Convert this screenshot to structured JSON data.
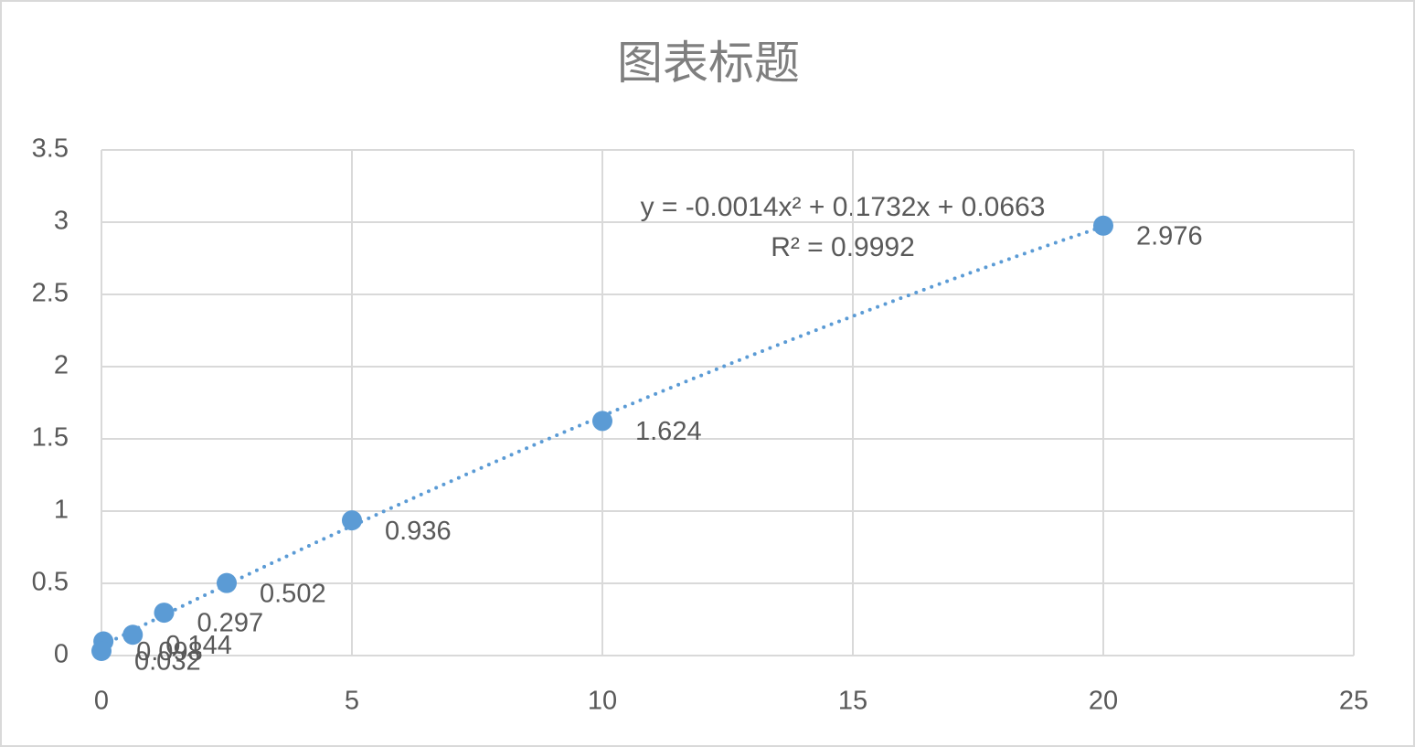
{
  "chart_data": {
    "type": "scatter",
    "title": "图表标题",
    "series": [
      {
        "color": "#5b9bd5",
        "x": [
          0.039,
          0,
          0.625,
          1.25,
          2.5,
          5,
          10,
          20
        ],
        "values": [
          0.098,
          0.032,
          0.144,
          0.297,
          0.502,
          0.936,
          1.624,
          2.976
        ]
      }
    ],
    "trendline": {
      "coefficients": [
        -0.0014,
        0.1732,
        0.0663
      ],
      "equation": "y = -0.0014x² + 0.1732x + 0.0663",
      "r_squared_label": "R² = 0.9992"
    },
    "xlim": [
      0,
      25
    ],
    "xticks": [
      0,
      5,
      10,
      15,
      20,
      25
    ],
    "ylim": [
      0,
      3.5
    ],
    "yticks": [
      0,
      0.5,
      1,
      1.5,
      2,
      2.5,
      3,
      3.5
    ],
    "grid": true
  }
}
